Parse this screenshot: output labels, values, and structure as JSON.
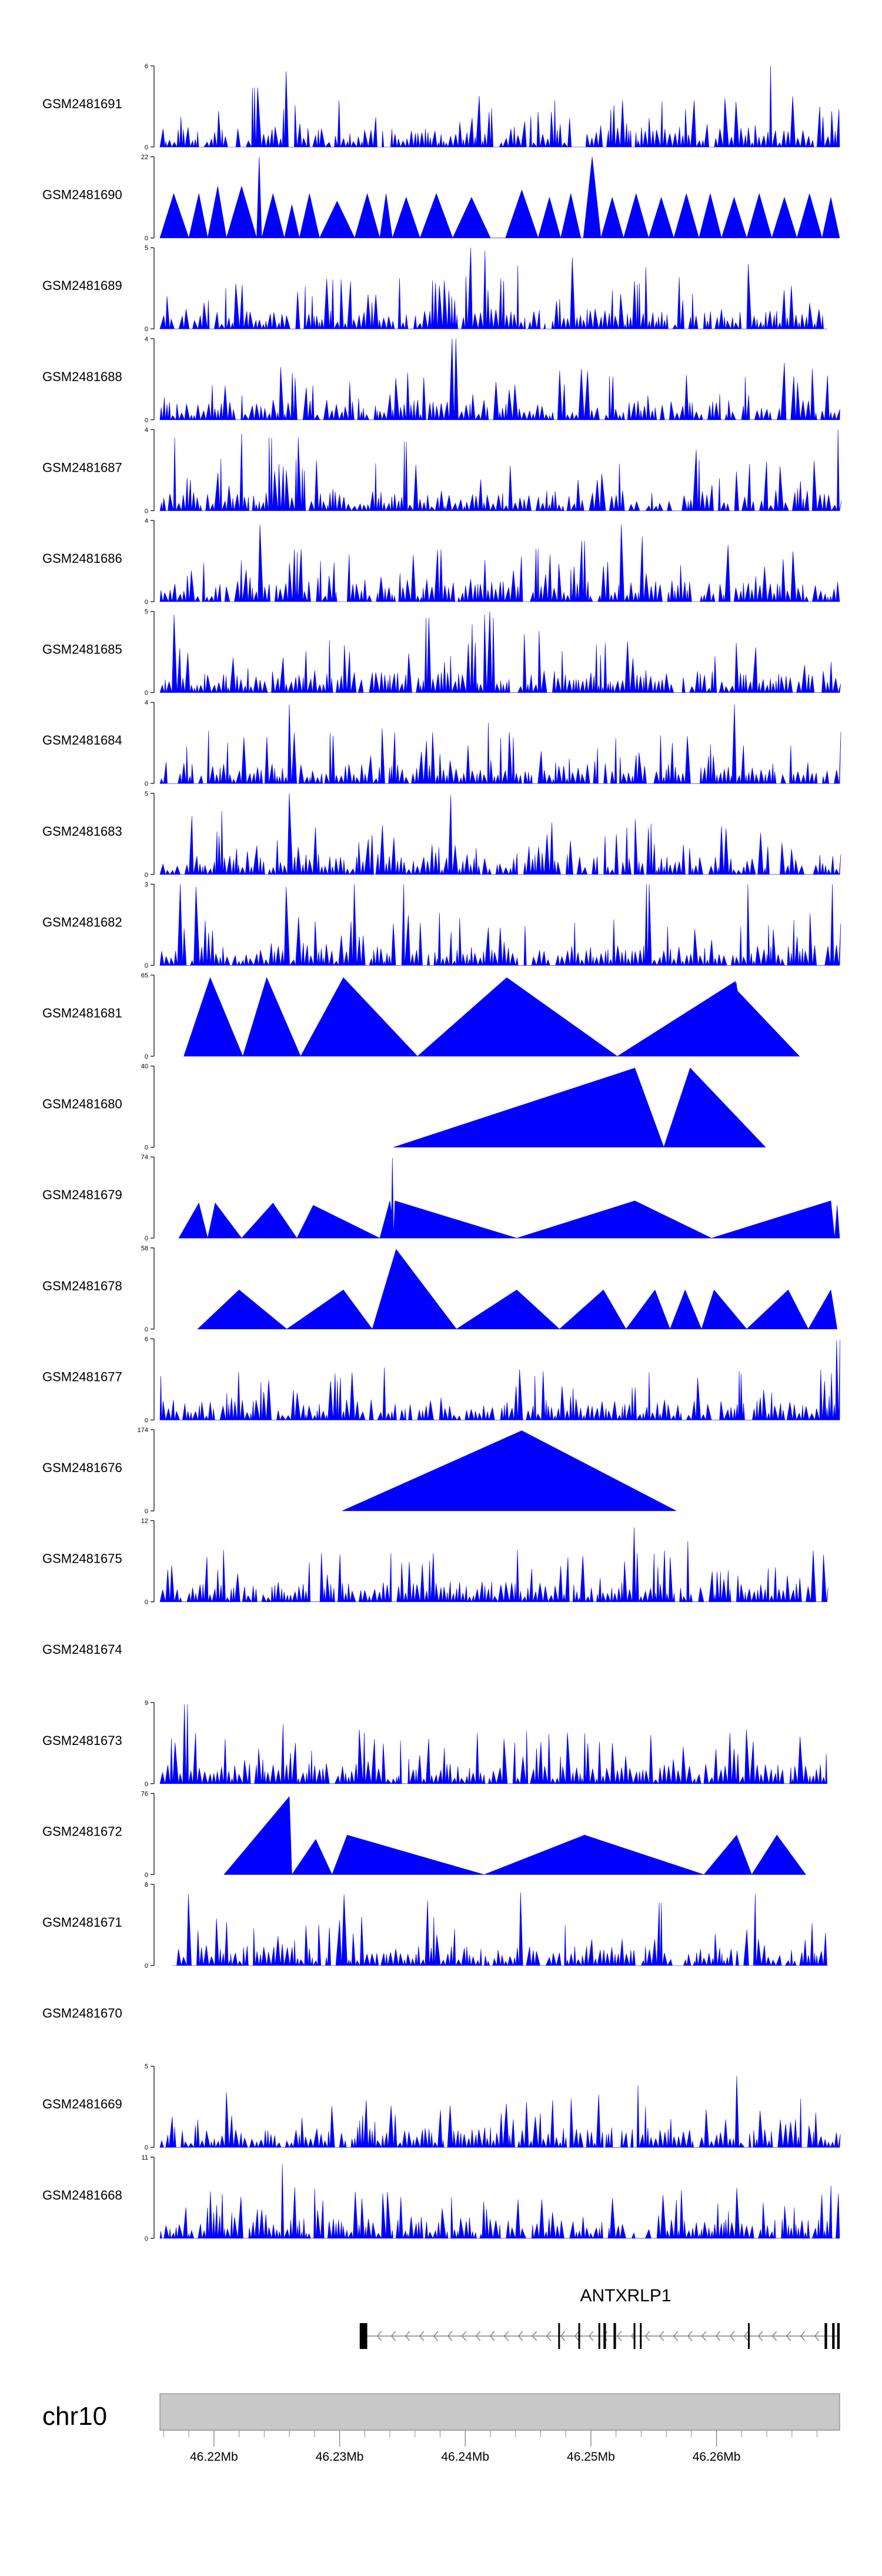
{
  "chart_data": {
    "type": "area",
    "title": "",
    "chromosome_label": "chr10",
    "gene_label": "ANTXRLP1",
    "xlim_mb": [
      46.2157,
      46.2698
    ],
    "x_tick_labels": [
      "46.22Mb",
      "46.23Mb",
      "46.24Mb",
      "46.25Mb",
      "46.26Mb"
    ],
    "x_tick_values": [
      46.22,
      46.23,
      46.24,
      46.25,
      46.26
    ],
    "tracks": [
      {
        "name": "GSM2481691",
        "ymax": 6,
        "ymax_label": "6",
        "style": "dense",
        "start": 46.2157,
        "end": 46.2698,
        "peaks": [
          [
            46.2258,
            5.6
          ],
          [
            46.2234,
            4.4
          ],
          [
            46.2232,
            4.4
          ],
          [
            46.2644,
            6.0
          ],
          [
            46.2608,
            3.6
          ],
          [
            46.2518,
            3.1
          ],
          [
            46.2681,
            3.0
          ],
          [
            46.2468,
            2.6
          ]
        ]
      },
      {
        "name": "GSM2481690",
        "ymax": 22,
        "ymax_label": "22",
        "style": "sparse",
        "start": 46.2157,
        "end": 46.2698,
        "segments": [
          [
            46.2157,
            46.2168,
            46.218,
            12
          ],
          [
            46.218,
            46.2188,
            46.2195,
            12
          ],
          [
            46.2195,
            46.2203,
            46.221,
            14
          ],
          [
            46.221,
            46.2222,
            46.2234,
            14
          ],
          [
            46.2234,
            46.2236,
            46.2238,
            22
          ],
          [
            46.2238,
            46.2247,
            46.2256,
            12
          ],
          [
            46.2256,
            46.2262,
            46.2268,
            9
          ],
          [
            46.2268,
            46.2276,
            46.2284,
            12
          ],
          [
            46.2284,
            46.2298,
            46.2312,
            10
          ],
          [
            46.2312,
            46.2322,
            46.2332,
            12
          ],
          [
            46.2332,
            46.2337,
            46.2342,
            12
          ],
          [
            46.2342,
            46.2353,
            46.2364,
            11
          ],
          [
            46.2364,
            46.2377,
            46.239,
            12
          ],
          [
            46.239,
            46.2405,
            46.242,
            11
          ],
          [
            46.2432,
            46.2445,
            46.2458,
            13
          ],
          [
            46.2458,
            46.2467,
            46.2476,
            11
          ],
          [
            46.2476,
            46.2484,
            46.2492,
            12
          ],
          [
            46.2494,
            46.2501,
            46.2508,
            22
          ],
          [
            46.2508,
            46.2517,
            46.2526,
            11
          ],
          [
            46.2526,
            46.2536,
            46.2546,
            12
          ],
          [
            46.2546,
            46.2556,
            46.2566,
            11
          ],
          [
            46.2566,
            46.2576,
            46.2586,
            12
          ],
          [
            46.2586,
            46.2595,
            46.2604,
            12
          ],
          [
            46.2604,
            46.2614,
            46.2624,
            11
          ],
          [
            46.2624,
            46.2634,
            46.2644,
            12
          ],
          [
            46.2644,
            46.2654,
            46.2664,
            11
          ],
          [
            46.2664,
            46.2674,
            46.2684,
            12
          ],
          [
            46.2684,
            46.2691,
            46.2698,
            11
          ]
        ]
      },
      {
        "name": "GSM2481689",
        "ymax": 5,
        "ymax_label": "5",
        "style": "dense",
        "start": 46.2157,
        "end": 46.2688,
        "peaks": [
          [
            46.2405,
            5.0
          ],
          [
            46.2416,
            4.8
          ],
          [
            46.2486,
            4.4
          ],
          [
            46.2442,
            3.9
          ],
          [
            46.2627,
            4.0
          ],
          [
            46.2544,
            3.8
          ]
        ]
      },
      {
        "name": "GSM2481688",
        "ymax": 4,
        "ymax_label": "4",
        "style": "dense",
        "start": 46.2157,
        "end": 46.2698,
        "peaks": [
          [
            46.2391,
            4.0
          ],
          [
            46.2408,
            3.0
          ],
          [
            46.2653,
            2.8
          ],
          [
            46.2576,
            2.2
          ],
          [
            46.2254,
            2.6
          ]
        ]
      },
      {
        "name": "GSM2481687",
        "ymax": 4,
        "ymax_label": "4",
        "style": "dense",
        "start": 46.2157,
        "end": 46.2698,
        "peaks": [
          [
            46.2222,
            3.8
          ],
          [
            46.2244,
            3.6
          ],
          [
            46.2268,
            3.6
          ],
          [
            46.2352,
            3.4
          ],
          [
            46.2534,
            3.5
          ],
          [
            46.2697,
            4.0
          ],
          [
            46.2169,
            3.6
          ],
          [
            46.2584,
            3.0
          ]
        ]
      },
      {
        "name": "GSM2481686",
        "ymax": 4,
        "ymax_label": "4",
        "style": "dense",
        "start": 46.2157,
        "end": 46.2698,
        "peaks": [
          [
            46.2237,
            3.8
          ],
          [
            46.2525,
            3.8
          ],
          [
            46.2494,
            3.0
          ],
          [
            46.2542,
            3.2
          ],
          [
            46.2458,
            2.6
          ],
          [
            46.2608,
            2.8
          ]
        ]
      },
      {
        "name": "GSM2481685",
        "ymax": 5,
        "ymax_label": "5",
        "style": "dense",
        "start": 46.2157,
        "end": 46.2698,
        "peaks": [
          [
            46.2169,
            4.8
          ],
          [
            46.2418,
            5.0
          ],
          [
            46.2414,
            4.8
          ],
          [
            46.2422,
            4.6
          ],
          [
            46.2406,
            4.2
          ],
          [
            46.237,
            4.6
          ],
          [
            46.2459,
            3.8
          ],
          [
            46.2447,
            3.6
          ]
        ]
      },
      {
        "name": "GSM2481684",
        "ymax": 4,
        "ymax_label": "4",
        "style": "dense",
        "start": 46.2157,
        "end": 46.2698,
        "peaks": [
          [
            46.2261,
            3.9
          ],
          [
            46.2614,
            3.9
          ],
          [
            46.2418,
            3.0
          ],
          [
            46.2334,
            2.7
          ],
          [
            46.2197,
            2.6
          ]
        ]
      },
      {
        "name": "GSM2481683",
        "ymax": 5,
        "ymax_label": "5",
        "style": "dense",
        "start": 46.2157,
        "end": 46.2698,
        "peaks": [
          [
            46.2261,
            5.0
          ],
          [
            46.2388,
            4.9
          ],
          [
            46.2206,
            3.9
          ],
          [
            46.2182,
            3.6
          ],
          [
            46.2536,
            3.4
          ],
          [
            46.2468,
            3.2
          ]
        ]
      },
      {
        "name": "GSM2481682",
        "ymax": 3,
        "ymax_label": "3",
        "style": "dense",
        "start": 46.2157,
        "end": 46.2698,
        "peaks": [
          [
            46.2174,
            3.0
          ],
          [
            46.2312,
            3.0
          ],
          [
            46.2352,
            3.0
          ],
          [
            46.2545,
            3.0
          ],
          [
            46.2624,
            3.0
          ],
          [
            46.2692,
            3.0
          ],
          [
            46.2186,
            2.9
          ],
          [
            46.2259,
            2.9
          ]
        ]
      },
      {
        "name": "GSM2481681",
        "ymax": 65,
        "ymax_label": "65",
        "style": "sparse",
        "start": 46.2176,
        "end": 46.2666,
        "segments": [
          [
            46.2176,
            46.2197,
            46.2223,
            63
          ],
          [
            46.2223,
            46.2242,
            46.2269,
            63
          ],
          [
            46.2269,
            46.2303,
            46.2362,
            63
          ],
          [
            46.2362,
            46.2433,
            46.2521,
            63
          ],
          [
            46.2521,
            46.2615,
            46.2629,
            60
          ],
          [
            46.2615,
            46.2616,
            46.2616,
            59
          ],
          [
            46.2616,
            46.2617,
            46.2666,
            52
          ]
        ]
      },
      {
        "name": "GSM2481680",
        "ymax": 40,
        "ymax_label": "40",
        "style": "sparse",
        "start": 46.2343,
        "end": 46.2639,
        "segments": [
          [
            46.2343,
            46.2535,
            46.2558,
            39
          ],
          [
            46.2558,
            46.2579,
            46.2639,
            39
          ]
        ]
      },
      {
        "name": "GSM2481679",
        "ymax": 74,
        "ymax_label": "74",
        "style": "sparse",
        "start": 46.2172,
        "end": 46.2698,
        "segments": [
          [
            46.2172,
            46.2188,
            46.2195,
            32
          ],
          [
            46.2195,
            46.2201,
            46.2222,
            32
          ],
          [
            46.2222,
            46.2247,
            46.2266,
            32
          ],
          [
            46.2266,
            46.2279,
            46.2332,
            30
          ],
          [
            46.2332,
            46.234,
            46.2344,
            34
          ],
          [
            46.2341,
            46.2342,
            46.2343,
            73
          ],
          [
            46.2343,
            46.2344,
            46.2441,
            34
          ],
          [
            46.2441,
            46.2535,
            46.2596,
            34
          ],
          [
            46.2596,
            46.2691,
            46.2694,
            34
          ],
          [
            46.2694,
            46.2696,
            46.2698,
            30
          ]
        ]
      },
      {
        "name": "GSM2481678",
        "ymax": 58,
        "ymax_label": "58",
        "style": "sparse",
        "start": 46.2187,
        "end": 46.2696,
        "segments": [
          [
            46.2187,
            46.222,
            46.2258,
            28
          ],
          [
            46.2258,
            46.2303,
            46.2326,
            28
          ],
          [
            46.2326,
            46.2345,
            46.2393,
            57
          ],
          [
            46.2393,
            46.2441,
            46.2475,
            28
          ],
          [
            46.2475,
            46.251,
            46.2528,
            28
          ],
          [
            46.2528,
            46.2551,
            46.2563,
            28
          ],
          [
            46.2563,
            46.2575,
            46.2588,
            28
          ],
          [
            46.2588,
            46.2598,
            46.2624,
            28
          ],
          [
            46.2624,
            46.2657,
            46.2673,
            28
          ],
          [
            46.2673,
            46.2691,
            46.2696,
            28
          ]
        ]
      },
      {
        "name": "GSM2481677",
        "ymax": 6,
        "ymax_label": "6",
        "style": "dense",
        "start": 46.2157,
        "end": 46.2698,
        "peaks": [
          [
            46.2697,
            5.9
          ],
          [
            46.2461,
            2.6
          ],
          [
            46.2534,
            2.4
          ],
          [
            46.2262,
            2.2
          ]
        ]
      },
      {
        "name": "GSM2481676",
        "ymax": 174,
        "ymax_label": "174",
        "style": "sparse",
        "start": 46.2302,
        "end": 46.2568,
        "segments": [
          [
            46.2302,
            46.2445,
            46.2568,
            172
          ]
        ]
      },
      {
        "name": "GSM2481675",
        "ymax": 12,
        "ymax_label": "12",
        "style": "dense",
        "start": 46.2157,
        "end": 46.2688,
        "peaks": [
          [
            46.2535,
            11.0
          ],
          [
            46.2577,
            9.0
          ],
          [
            46.2564,
            6.6
          ],
          [
            46.2538,
            7.2
          ],
          [
            46.23,
            7.0
          ],
          [
            46.2602,
            4.4
          ]
        ]
      },
      {
        "name": "GSM2481674",
        "style": "empty"
      },
      {
        "name": "GSM2481673",
        "ymax": 9,
        "ymax_label": "9",
        "style": "dense",
        "start": 46.2157,
        "end": 46.2688,
        "peaks": [
          [
            46.2178,
            8.8
          ],
          [
            46.2254,
            6.6
          ],
          [
            46.2317,
            6.0
          ],
          [
            46.2433,
            5.6
          ],
          [
            46.2624,
            6.0
          ],
          [
            46.2547,
            5.4
          ],
          [
            46.2668,
            5.2
          ]
        ]
      },
      {
        "name": "GSM2481672",
        "ymax": 76,
        "ymax_label": "76",
        "style": "sparse",
        "start": 46.2208,
        "end": 46.2671,
        "segments": [
          [
            46.2208,
            46.226,
            46.2262,
            73
          ],
          [
            46.2262,
            46.2281,
            46.2294,
            33
          ],
          [
            46.2294,
            46.2306,
            46.2415,
            37
          ],
          [
            46.2415,
            46.2495,
            46.259,
            37
          ],
          [
            46.259,
            46.2616,
            46.2628,
            37
          ],
          [
            46.2628,
            46.2648,
            46.2671,
            37
          ]
        ]
      },
      {
        "name": "GSM2481671",
        "ymax": 8,
        "ymax_label": "8",
        "style": "dense",
        "start": 46.2167,
        "end": 46.2688,
        "peaks": [
          [
            46.2444,
            7.2
          ],
          [
            46.2178,
            7.0
          ],
          [
            46.2304,
            7.0
          ],
          [
            46.263,
            7.0
          ],
          [
            46.2369,
            6.4
          ],
          [
            46.2555,
            6.2
          ]
        ]
      },
      {
        "name": "GSM2481670",
        "style": "empty"
      },
      {
        "name": "GSM2481669",
        "ymax": 5,
        "ymax_label": "5",
        "style": "dense",
        "start": 46.2157,
        "end": 46.2698,
        "peaks": [
          [
            46.2617,
            4.4
          ],
          [
            46.2538,
            3.8
          ],
          [
            46.2209,
            3.4
          ],
          [
            46.2485,
            3.0
          ],
          [
            46.245,
            2.8
          ]
        ]
      },
      {
        "name": "GSM2481668",
        "ymax": 11,
        "ymax_label": "11",
        "style": "dense",
        "start": 46.2157,
        "end": 46.2698,
        "peaks": [
          [
            46.2175,
            10.6
          ],
          [
            46.2255,
            10.0
          ],
          [
            46.2223,
            5.6
          ],
          [
            46.2318,
            5.4
          ],
          [
            46.2567,
            5.2
          ],
          [
            46.2638,
            4.8
          ],
          [
            46.2448,
            4.6
          ]
        ]
      }
    ],
    "gene_model": {
      "start": 46.2316,
      "end": 46.2698,
      "strand": "-",
      "exons": [
        [
          46.2316,
          46.2322
        ],
        [
          46.2474,
          46.2475
        ],
        [
          46.249,
          46.2491
        ],
        [
          46.2506,
          46.2507
        ],
        [
          46.251,
          46.2512
        ],
        [
          46.2518,
          46.252
        ],
        [
          46.2534,
          46.2535
        ],
        [
          46.2539,
          46.254
        ],
        [
          46.2625,
          46.2626
        ],
        [
          46.2686,
          46.2688
        ],
        [
          46.2692,
          46.2694
        ],
        [
          46.2696,
          46.2698
        ]
      ]
    }
  },
  "colors": {
    "signal": "#0000ff",
    "axis": "#000000",
    "gene": "#000000",
    "gene_arrows": "#808080",
    "ideogram_fill": "#c8c8c8",
    "ideogram_stroke": "#888888"
  }
}
